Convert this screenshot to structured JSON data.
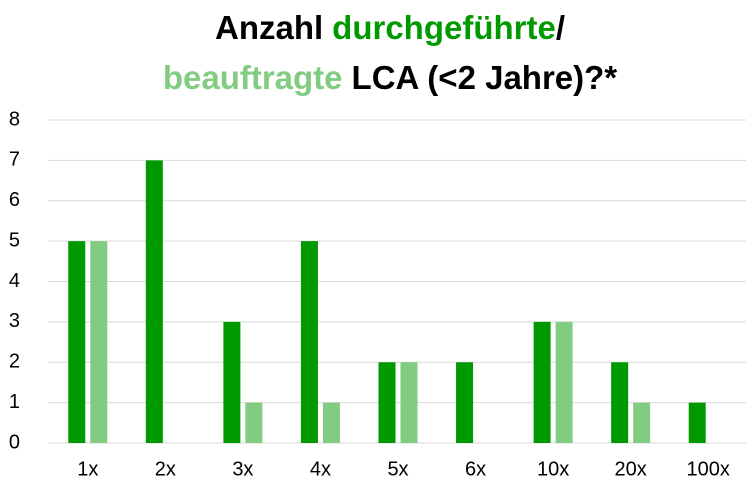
{
  "chart_data": {
    "type": "bar",
    "title": [
      "Anzahl",
      "/",
      "LCA (<2 Jahre)?*"
    ],
    "categories": [
      "1x",
      "2x",
      "3x",
      "4x",
      "5x",
      "6x",
      "10x",
      "20x",
      "100x"
    ],
    "series": [
      {
        "name": "durchgeführte",
        "color": "#009a00",
        "values": [
          5,
          7,
          3,
          5,
          2,
          2,
          3,
          2,
          1
        ]
      },
      {
        "name": "beauftragte",
        "color": "#82cc82",
        "values": [
          5,
          0,
          1,
          1,
          2,
          0,
          3,
          1,
          0
        ]
      }
    ],
    "ylim": [
      0,
      8
    ],
    "yticks": [
      0,
      1,
      2,
      3,
      4,
      5,
      6,
      7,
      8
    ],
    "grid": true
  }
}
